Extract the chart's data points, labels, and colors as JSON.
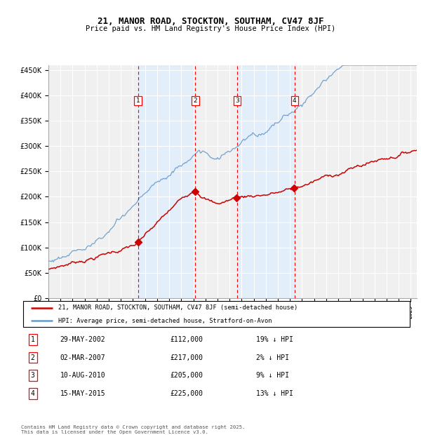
{
  "title": "21, MANOR ROAD, STOCKTON, SOUTHAM, CV47 8JF",
  "subtitle": "Price paid vs. HM Land Registry's House Price Index (HPI)",
  "ylabel_ticks": [
    "£0",
    "£50K",
    "£100K",
    "£150K",
    "£200K",
    "£250K",
    "£300K",
    "£350K",
    "£400K",
    "£450K"
  ],
  "ylabel_values": [
    0,
    50000,
    100000,
    150000,
    200000,
    250000,
    300000,
    350000,
    400000,
    450000
  ],
  "xmin": 1995.0,
  "xmax": 2025.5,
  "ymin": 0,
  "ymax": 460000,
  "transactions": [
    {
      "num": 1,
      "date": "29-MAY-2002",
      "x": 2002.41,
      "price": 112000
    },
    {
      "num": 2,
      "date": "02-MAR-2007",
      "x": 2007.17,
      "price": 217000
    },
    {
      "num": 3,
      "date": "10-AUG-2010",
      "x": 2010.61,
      "price": 205000
    },
    {
      "num": 4,
      "date": "15-MAY-2015",
      "x": 2015.37,
      "price": 225000
    }
  ],
  "legend_line1": "21, MANOR ROAD, STOCKTON, SOUTHAM, CV47 8JF (semi-detached house)",
  "legend_line2": "HPI: Average price, semi-detached house, Stratford-on-Avon",
  "footnote": "Contains HM Land Registry data © Crown copyright and database right 2025.\nThis data is licensed under the Open Government Licence v3.0.",
  "red_color": "#cc0000",
  "blue_color": "#6699cc",
  "bg_shade_color": "#ddeeff",
  "grid_color": "#cccccc",
  "table_rows": [
    {
      "num": 1,
      "date": "29-MAY-2002",
      "price": "£112,000",
      "hpi": "19% ↓ HPI"
    },
    {
      "num": 2,
      "date": "02-MAR-2007",
      "price": "£217,000",
      "hpi": "2% ↓ HPI"
    },
    {
      "num": 3,
      "date": "10-AUG-2010",
      "price": "£205,000",
      "hpi": "9% ↓ HPI"
    },
    {
      "num": 4,
      "date": "15-MAY-2015",
      "price": "£225,000",
      "hpi": "13% ↓ HPI"
    }
  ]
}
